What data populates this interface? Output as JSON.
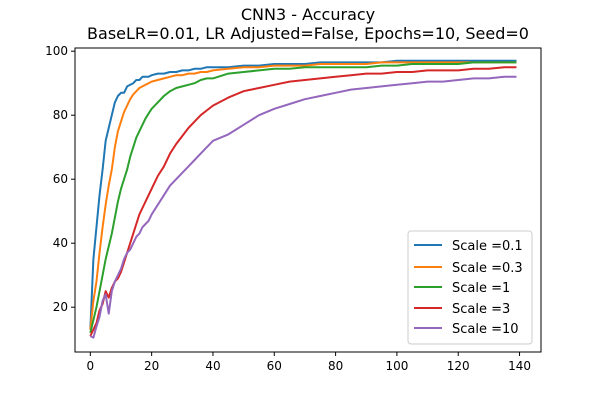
{
  "chart_data": {
    "type": "line",
    "title": "CNN3 - Accuracy",
    "subtitle": "BaseLR=0.01, LR Adjusted=False, Epochs=10, Seed=0",
    "xlabel": "",
    "ylabel": "",
    "xlim": [
      -5,
      147
    ],
    "ylim": [
      6,
      101
    ],
    "xticks": [
      0,
      20,
      40,
      60,
      80,
      100,
      120,
      140
    ],
    "yticks": [
      20,
      40,
      60,
      80,
      100
    ],
    "grid": false,
    "legend_position": "lower-right",
    "series": [
      {
        "name": "Scale =0.1",
        "color": "#1f77b4",
        "x": [
          0,
          1,
          2,
          3,
          4,
          5,
          6,
          7,
          8,
          9,
          10,
          11,
          12,
          13,
          14,
          15,
          16,
          17,
          18,
          19,
          20,
          22,
          24,
          26,
          28,
          30,
          32,
          34,
          36,
          38,
          40,
          45,
          50,
          55,
          60,
          65,
          70,
          75,
          80,
          85,
          90,
          95,
          100,
          105,
          110,
          115,
          120,
          125,
          130,
          135,
          139
        ],
        "y": [
          13,
          35,
          45,
          55,
          63,
          72,
          76,
          80,
          84,
          86,
          87,
          87,
          89,
          89.5,
          90,
          91,
          91,
          92,
          92,
          92,
          92.5,
          93,
          93,
          93.5,
          93.5,
          94,
          94,
          94.5,
          94.5,
          95,
          95,
          95,
          95.5,
          95.5,
          96,
          96,
          96,
          96.5,
          96.5,
          96.5,
          96.5,
          96.5,
          97,
          97,
          97,
          97,
          97,
          97,
          97,
          97,
          97
        ]
      },
      {
        "name": "Scale =0.3",
        "color": "#ff7f0e",
        "x": [
          0,
          1,
          2,
          3,
          4,
          5,
          6,
          7,
          8,
          9,
          10,
          11,
          12,
          13,
          14,
          15,
          16,
          17,
          18,
          19,
          20,
          22,
          24,
          26,
          28,
          30,
          32,
          34,
          36,
          38,
          40,
          45,
          50,
          55,
          60,
          65,
          70,
          75,
          80,
          85,
          90,
          95,
          100,
          105,
          110,
          115,
          120,
          125,
          130,
          135,
          139
        ],
        "y": [
          13,
          22,
          28,
          37,
          45,
          52,
          58,
          63,
          70,
          75,
          78,
          81,
          83,
          85,
          86.5,
          87.5,
          88.5,
          89,
          89.5,
          90,
          90.5,
          91,
          91.5,
          92,
          92.5,
          92.5,
          93,
          93,
          93.5,
          93.5,
          94,
          94.5,
          95,
          95,
          95.5,
          95.5,
          95.5,
          96,
          96,
          96,
          96,
          96.5,
          96.5,
          96.5,
          96.5,
          96.5,
          96.5,
          96.5,
          96.5,
          96.5,
          96.5
        ]
      },
      {
        "name": "Scale =1",
        "color": "#2ca02c",
        "x": [
          0,
          1,
          2,
          3,
          4,
          5,
          6,
          7,
          8,
          9,
          10,
          11,
          12,
          13,
          14,
          15,
          16,
          17,
          18,
          19,
          20,
          22,
          24,
          26,
          28,
          30,
          32,
          34,
          36,
          38,
          40,
          45,
          50,
          55,
          60,
          65,
          70,
          75,
          80,
          85,
          90,
          95,
          100,
          105,
          110,
          115,
          120,
          125,
          130,
          135,
          139
        ],
        "y": [
          12,
          16,
          20,
          25,
          30,
          35,
          39,
          43,
          48,
          53,
          57,
          60,
          63,
          67,
          70,
          73,
          75,
          77,
          79,
          80.5,
          82,
          84,
          86,
          87.5,
          88.5,
          89,
          89.5,
          90,
          91,
          91.5,
          91.5,
          93,
          93.5,
          94,
          94.5,
          94.5,
          95,
          95,
          95,
          95,
          95,
          95.5,
          95.5,
          96,
          96,
          96,
          96,
          96.5,
          96.5,
          96.5,
          96.5
        ]
      },
      {
        "name": "Scale =3",
        "color": "#d62728",
        "x": [
          0,
          1,
          2,
          3,
          4,
          5,
          6,
          7,
          8,
          9,
          10,
          11,
          12,
          13,
          14,
          15,
          16,
          17,
          18,
          19,
          20,
          22,
          24,
          26,
          28,
          30,
          32,
          34,
          36,
          38,
          40,
          45,
          50,
          55,
          60,
          65,
          70,
          75,
          80,
          85,
          90,
          95,
          100,
          105,
          110,
          115,
          120,
          125,
          130,
          135,
          139
        ],
        "y": [
          11,
          13,
          15,
          19,
          21,
          25,
          23,
          26,
          28,
          29,
          31,
          34,
          37,
          40,
          43,
          46,
          49,
          51,
          53,
          55,
          57,
          61,
          64,
          68,
          71,
          73.5,
          76,
          78,
          80,
          81.5,
          83,
          85.5,
          87.5,
          88.5,
          89.5,
          90.5,
          91,
          91.5,
          92,
          92.5,
          93,
          93,
          93.5,
          93.5,
          94,
          94,
          94,
          94.5,
          94.5,
          95,
          95
        ]
      },
      {
        "name": "Scale =10",
        "color": "#9467bd",
        "x": [
          0,
          1,
          2,
          3,
          4,
          5,
          6,
          7,
          8,
          9,
          10,
          11,
          12,
          13,
          14,
          15,
          16,
          17,
          18,
          19,
          20,
          22,
          24,
          26,
          28,
          30,
          32,
          34,
          36,
          38,
          40,
          45,
          50,
          55,
          60,
          65,
          70,
          75,
          80,
          85,
          90,
          95,
          100,
          105,
          110,
          115,
          120,
          125,
          130,
          135,
          139
        ],
        "y": [
          11,
          10.5,
          14,
          17,
          22,
          24,
          18,
          25,
          28,
          30,
          32,
          35,
          37,
          38,
          40,
          42,
          43,
          45,
          46,
          47,
          49,
          52,
          55,
          58,
          60,
          62,
          64,
          66,
          68,
          70,
          72,
          74,
          77,
          80,
          82,
          83.5,
          85,
          86,
          87,
          88,
          88.5,
          89,
          89.5,
          90,
          90.5,
          90.5,
          91,
          91.5,
          91.5,
          92,
          92
        ]
      }
    ]
  }
}
